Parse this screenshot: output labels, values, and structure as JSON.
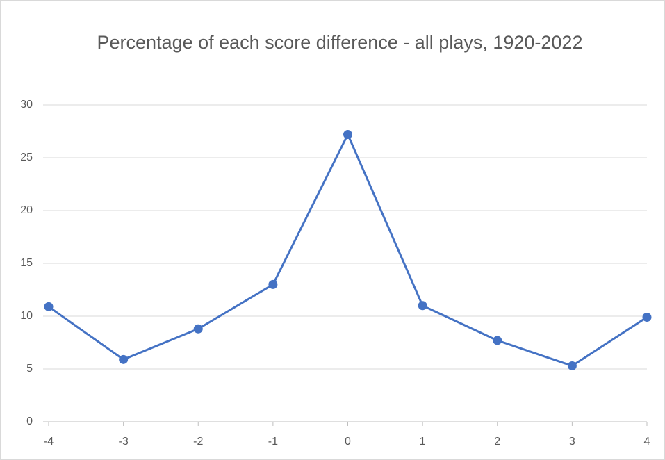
{
  "chart_data": {
    "type": "line",
    "title": "Percentage of each score difference - all plays, 1920-2022",
    "categories": [
      "-4",
      "-3",
      "-2",
      "-1",
      "0",
      "1",
      "2",
      "3",
      "4"
    ],
    "series": [
      {
        "name": "Percentage",
        "color": "#4472c4",
        "values": [
          10.9,
          5.9,
          8.8,
          13.0,
          27.2,
          11.0,
          7.7,
          5.3,
          9.9
        ]
      }
    ],
    "ylim": [
      0,
      30
    ],
    "yticks": [
      0,
      5,
      10,
      15,
      20,
      25,
      30
    ],
    "grid": true
  }
}
